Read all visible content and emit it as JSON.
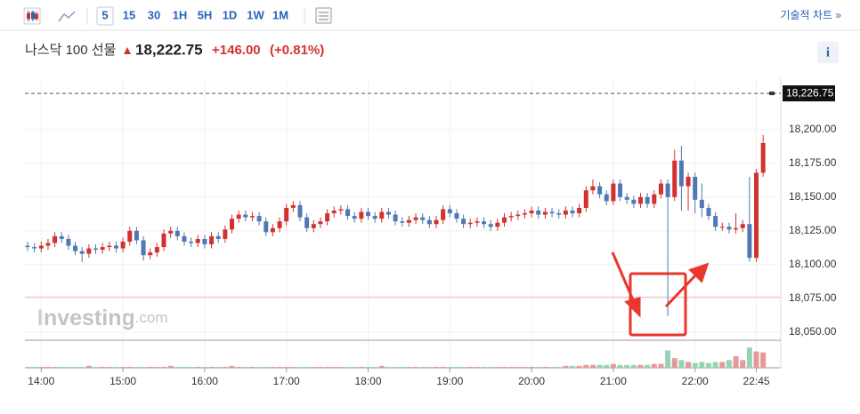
{
  "toolbar": {
    "intervals": [
      "5",
      "15",
      "30",
      "1H",
      "5H",
      "1D",
      "1W",
      "1M"
    ],
    "technical": "기술적 차트 »"
  },
  "header": {
    "instrument": "나스닥 100 선물",
    "price": "18,222.75",
    "change": "+146.00",
    "change_pct": "(+0.81%)",
    "info": "i"
  },
  "watermark": {
    "brand": "Investing",
    "suffix": ".com"
  },
  "chart_data": {
    "type": "candlestick",
    "up_color": "#d2322d",
    "down_color": "#4f78b4",
    "volume_up_color": "#e59a9a",
    "volume_down_color": "#96d3b5",
    "ylim": [
      18044,
      18238
    ],
    "yticks": [
      {
        "value": 18200,
        "label": "18,200.00"
      },
      {
        "value": 18175,
        "label": "18,175.00"
      },
      {
        "value": 18150,
        "label": "18,150.00"
      },
      {
        "value": 18125,
        "label": "18,125.00"
      },
      {
        "value": 18100,
        "label": "18,100.00"
      },
      {
        "value": 18075,
        "label": "18,075.00"
      },
      {
        "value": 18050,
        "label": "18,050.00"
      }
    ],
    "last_price": {
      "value": 18226.75,
      "label": "18,226.75"
    },
    "reference_line": 18076,
    "categories": [
      null,
      null,
      "14:00",
      null,
      null,
      null,
      null,
      null,
      null,
      null,
      null,
      null,
      null,
      null,
      "15:00",
      null,
      null,
      null,
      null,
      null,
      null,
      null,
      null,
      null,
      null,
      null,
      "16:00",
      null,
      null,
      null,
      null,
      null,
      null,
      null,
      null,
      null,
      null,
      null,
      "17:00",
      null,
      null,
      null,
      null,
      null,
      null,
      null,
      null,
      null,
      null,
      null,
      "18:00",
      null,
      null,
      null,
      null,
      null,
      null,
      null,
      null,
      null,
      null,
      null,
      "19:00",
      null,
      null,
      null,
      null,
      null,
      null,
      null,
      null,
      null,
      null,
      null,
      "20:00",
      null,
      null,
      null,
      null,
      null,
      null,
      null,
      null,
      null,
      null,
      null,
      "21:00",
      null,
      null,
      null,
      null,
      null,
      null,
      null,
      null,
      null,
      null,
      null,
      "22:00",
      null,
      null,
      null,
      null,
      null,
      null,
      null,
      null,
      "22:45",
      null
    ],
    "open": [
      18114,
      18113,
      18112,
      18114,
      18116,
      18121,
      18119,
      18114,
      18110,
      18108,
      18112,
      18111,
      18113,
      18114,
      18112,
      18117,
      18125,
      18118,
      18107,
      18109,
      18113,
      18123,
      18125,
      18121,
      18117,
      18116,
      18119,
      18115,
      18121,
      18119,
      18126,
      18134,
      18137,
      18135,
      18136,
      18132,
      18124,
      18127,
      18132,
      18142,
      18144,
      18135,
      18127,
      18130,
      18132,
      18138,
      18140,
      18141,
      18136,
      18134,
      18139,
      18136,
      18134,
      18139,
      18137,
      18132,
      18131,
      18133,
      18135,
      18133,
      18130,
      18133,
      18141,
      18138,
      18134,
      18130,
      18131,
      18132,
      18130,
      18128,
      18131,
      18135,
      18136,
      18137,
      18138,
      18140,
      18137,
      18139,
      18138,
      18137,
      18140,
      18138,
      18142,
      18155,
      18158,
      18152,
      18147,
      18160,
      18150,
      18148,
      18145,
      18150,
      18145,
      18152,
      18160,
      18150,
      18177,
      18158,
      18165,
      18148,
      18142,
      18136,
      18128,
      18128,
      18126,
      18127,
      18130,
      18105,
      18168
    ],
    "high": [
      18117,
      18116,
      18117,
      18119,
      18124,
      18124,
      18122,
      18117,
      18113,
      18115,
      18115,
      18116,
      18117,
      18117,
      18120,
      18128,
      18128,
      18121,
      18112,
      18116,
      18126,
      18128,
      18128,
      18124,
      18120,
      18122,
      18122,
      18124,
      18124,
      18129,
      18137,
      18140,
      18140,
      18139,
      18139,
      18135,
      18130,
      18135,
      18145,
      18147,
      18147,
      18138,
      18133,
      18135,
      18141,
      18143,
      18144,
      18144,
      18139,
      18142,
      18142,
      18139,
      18142,
      18142,
      18140,
      18135,
      18136,
      18138,
      18138,
      18136,
      18136,
      18144,
      18144,
      18141,
      18137,
      18134,
      18135,
      18135,
      18133,
      18134,
      18138,
      18139,
      18140,
      18141,
      18143,
      18143,
      18142,
      18142,
      18141,
      18143,
      18143,
      18145,
      18158,
      18163,
      18161,
      18155,
      18163,
      18163,
      18153,
      18151,
      18153,
      18153,
      18155,
      18163,
      18163,
      18185,
      18188,
      18168,
      18168,
      18160,
      18145,
      18139,
      18131,
      18131,
      18138,
      18133,
      18165,
      18171,
      18196
    ],
    "low": [
      18110,
      18109,
      18109,
      18111,
      18113,
      18116,
      18111,
      18107,
      18102,
      18105,
      18108,
      18108,
      18110,
      18109,
      18109,
      18114,
      18115,
      18103,
      18104,
      18106,
      18110,
      18120,
      18118,
      18114,
      18113,
      18113,
      18112,
      18112,
      18116,
      18116,
      18123,
      18131,
      18132,
      18132,
      18129,
      18121,
      18121,
      18124,
      18129,
      18139,
      18132,
      18124,
      18124,
      18127,
      18129,
      18135,
      18137,
      18133,
      18131,
      18131,
      18133,
      18131,
      18131,
      18134,
      18129,
      18128,
      18128,
      18130,
      18130,
      18127,
      18127,
      18130,
      18135,
      18131,
      18127,
      18127,
      18128,
      18127,
      18125,
      18125,
      18128,
      18132,
      18133,
      18134,
      18135,
      18134,
      18134,
      18135,
      18134,
      18134,
      18135,
      18135,
      18139,
      18152,
      18149,
      18144,
      18144,
      18147,
      18145,
      18142,
      18142,
      18142,
      18142,
      18149,
      18062,
      18147,
      18140,
      18140,
      18138,
      18135,
      18133,
      18125,
      18125,
      18123,
      18123,
      18124,
      18102,
      18102,
      18165
    ],
    "close": [
      18113,
      18112,
      18114,
      18116,
      18121,
      18119,
      18114,
      18110,
      18108,
      18112,
      18111,
      18113,
      18114,
      18112,
      18117,
      18125,
      18118,
      18107,
      18109,
      18113,
      18123,
      18125,
      18121,
      18117,
      18116,
      18119,
      18115,
      18121,
      18119,
      18126,
      18134,
      18137,
      18135,
      18136,
      18132,
      18124,
      18127,
      18132,
      18142,
      18144,
      18135,
      18127,
      18130,
      18132,
      18138,
      18140,
      18141,
      18136,
      18134,
      18139,
      18136,
      18134,
      18139,
      18137,
      18132,
      18131,
      18133,
      18135,
      18133,
      18130,
      18133,
      18141,
      18138,
      18134,
      18130,
      18131,
      18132,
      18130,
      18128,
      18131,
      18135,
      18136,
      18137,
      18138,
      18140,
      18137,
      18139,
      18138,
      18137,
      18140,
      18138,
      18142,
      18155,
      18158,
      18152,
      18147,
      18160,
      18150,
      18148,
      18145,
      18150,
      18145,
      18152,
      18160,
      18150,
      18177,
      18158,
      18165,
      18148,
      18142,
      18136,
      18128,
      18128,
      18126,
      18127,
      18130,
      18105,
      18168,
      18190
    ],
    "volume_lim": [
      0,
      24
    ],
    "volume": [
      1,
      1,
      1,
      1,
      1,
      1,
      1,
      1,
      1,
      2,
      1,
      1,
      1,
      1,
      1,
      1,
      1,
      1,
      1,
      1,
      1,
      2,
      1,
      1,
      1,
      1,
      1,
      1,
      1,
      1,
      2,
      1,
      1,
      1,
      1,
      1,
      1,
      1,
      1,
      1,
      1,
      1,
      1,
      1,
      1,
      1,
      1,
      1,
      1,
      1,
      1,
      1,
      2,
      1,
      1,
      1,
      1,
      1,
      1,
      1,
      1,
      1,
      1,
      1,
      1,
      1,
      1,
      1,
      1,
      1,
      1,
      1,
      1,
      1,
      1,
      1,
      1,
      1,
      1,
      2,
      2,
      2,
      3,
      3,
      3,
      3,
      4,
      3,
      3,
      3,
      3,
      3,
      4,
      4,
      18,
      10,
      8,
      6,
      5,
      6,
      5,
      6,
      6,
      8,
      12,
      8,
      21,
      17,
      16
    ]
  }
}
